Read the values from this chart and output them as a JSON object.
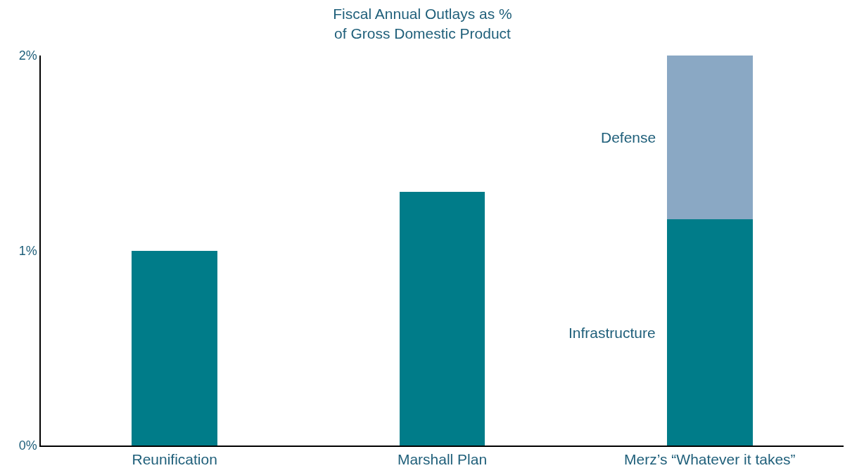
{
  "chart_data": {
    "type": "bar",
    "title": "Fiscal Annual Outlays as % of Gross Domestic Product",
    "categories": [
      "Reunification",
      "Marshall Plan",
      "Merz’s “Whatever it takes”"
    ],
    "stacked": true,
    "series": [
      {
        "name": "Infrastructure",
        "color": "#007c89",
        "values": [
          1.0,
          1.3,
          1.16
        ]
      },
      {
        "name": "Defense",
        "color": "#8aa8c4",
        "values": [
          null,
          null,
          0.84
        ]
      }
    ],
    "ylim": [
      0,
      2
    ],
    "yticks": [
      {
        "value": 0,
        "label": "0%"
      },
      {
        "value": 1,
        "label": "1%"
      },
      {
        "value": 2,
        "label": "2%"
      }
    ],
    "grid": false,
    "legend": false
  }
}
